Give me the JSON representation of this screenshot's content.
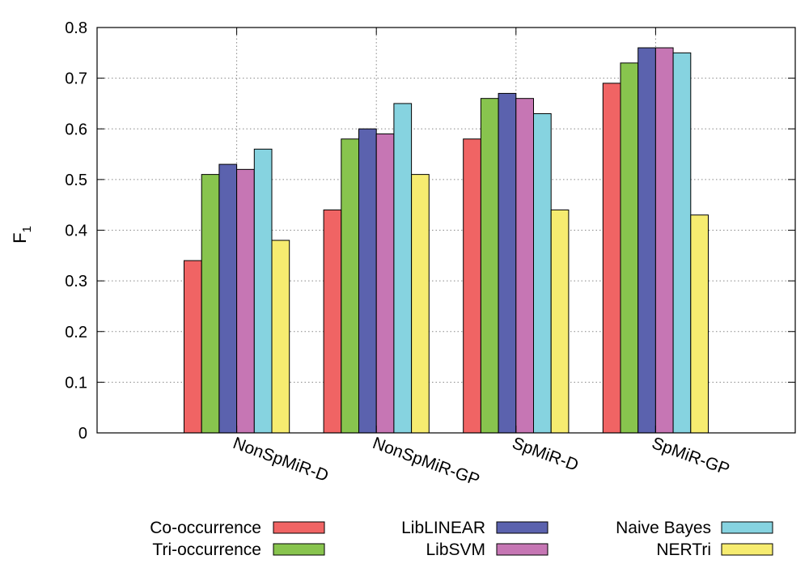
{
  "chart_data": {
    "type": "bar",
    "ylabel": "F",
    "ylabel_subscript": "1",
    "ylim": [
      0,
      0.8
    ],
    "yticks": [
      "0",
      "0.1",
      "0.2",
      "0.3",
      "0.4",
      "0.5",
      "0.6",
      "0.7",
      "0.8"
    ],
    "grid": true,
    "legend_position": "bottom",
    "categories": [
      "NonSpMiR-D",
      "NonSpMiR-GP",
      "SpMiR-D",
      "SpMiR-GP"
    ],
    "series": [
      {
        "name": "Co-occurrence",
        "color": "#f06464",
        "values": [
          0.34,
          0.44,
          0.58,
          0.69
        ]
      },
      {
        "name": "Tri-occurrence",
        "color": "#88c44e",
        "values": [
          0.51,
          0.58,
          0.66,
          0.73
        ]
      },
      {
        "name": "LibLINEAR",
        "color": "#5b62ae",
        "values": [
          0.53,
          0.6,
          0.67,
          0.76
        ]
      },
      {
        "name": "LibSVM",
        "color": "#c676b4",
        "values": [
          0.52,
          0.59,
          0.66,
          0.76
        ]
      },
      {
        "name": "Naive Bayes",
        "color": "#86d3e0",
        "values": [
          0.56,
          0.65,
          0.63,
          0.75
        ]
      },
      {
        "name": "NERTri",
        "color": "#f6ec70",
        "values": [
          0.38,
          0.51,
          0.44,
          0.43
        ]
      }
    ]
  }
}
